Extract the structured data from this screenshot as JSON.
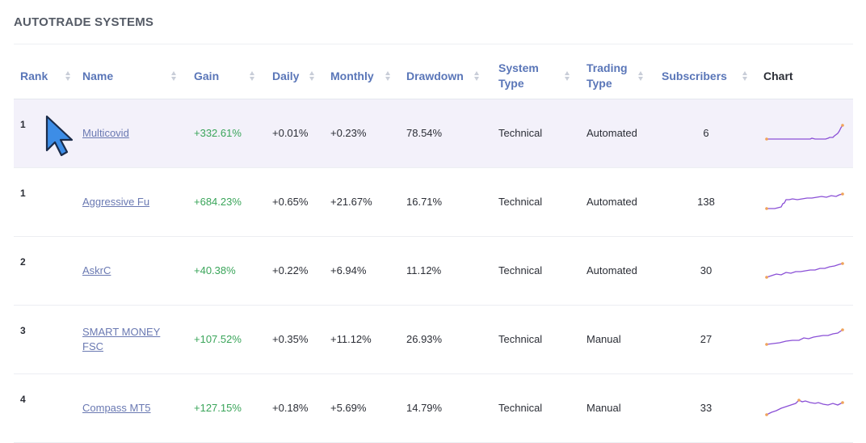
{
  "page": {
    "title": "AUTOTRADE SYSTEMS"
  },
  "table": {
    "headers": {
      "rank": "Rank",
      "name": "Name",
      "gain": "Gain",
      "daily": "Daily",
      "monthly": "Monthly",
      "drawdown": "Drawdown",
      "system_type": "System Type",
      "trading_type": "Trading Type",
      "subscribers": "Subscribers",
      "chart": "Chart"
    },
    "rows": [
      {
        "rank": "1",
        "name": "Multicovid",
        "gain": "+332.61%",
        "daily": "+0.01%",
        "monthly": "+0.23%",
        "drawdown": "78.54%",
        "system_type": "Technical",
        "trading_type": "Automated",
        "subscribers": "6"
      },
      {
        "rank": "1",
        "name": "Aggressive Fu",
        "gain": "+684.23%",
        "daily": "+0.65%",
        "monthly": "+21.67%",
        "drawdown": "16.71%",
        "system_type": "Technical",
        "trading_type": "Automated",
        "subscribers": "138"
      },
      {
        "rank": "2",
        "name": "AskrC",
        "gain": "+40.38%",
        "daily": "+0.22%",
        "monthly": "+6.94%",
        "drawdown": "11.12%",
        "system_type": "Technical",
        "trading_type": "Automated",
        "subscribers": "30"
      },
      {
        "rank": "3",
        "name": "SMART MONEY FSC",
        "gain": "+107.52%",
        "daily": "+0.35%",
        "monthly": "+11.12%",
        "drawdown": "26.93%",
        "system_type": "Technical",
        "trading_type": "Manual",
        "subscribers": "27"
      },
      {
        "rank": "4",
        "name": "Compass MT5",
        "gain": "+127.15%",
        "daily": "+0.18%",
        "monthly": "+5.69%",
        "drawdown": "14.79%",
        "system_type": "Technical",
        "trading_type": "Manual",
        "subscribers": "33"
      }
    ]
  },
  "colors": {
    "header_link": "#5a76b8",
    "gain_positive": "#3aa55a",
    "row_highlight": "#f3f1fa",
    "sparkline": "#8a4fd6",
    "sparkline_endpoint": "#f0a35a"
  }
}
